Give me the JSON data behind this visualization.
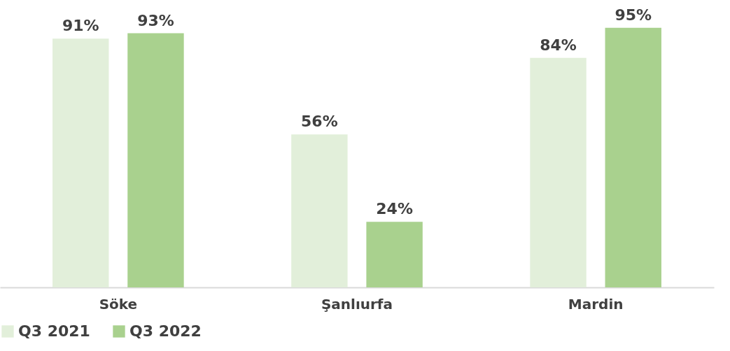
{
  "chart_data": {
    "type": "bar",
    "categories": [
      "Söke",
      "Şanlıurfa",
      "Mardin"
    ],
    "series": [
      {
        "name": "Q3 2021",
        "color": "#e2efda",
        "values": [
          91,
          56,
          84
        ],
        "value_labels": [
          "91%",
          "56%",
          "84%"
        ]
      },
      {
        "name": "Q3 2022",
        "color": "#a9d18e",
        "values": [
          93,
          24,
          95
        ],
        "value_labels": [
          "93%",
          "24%",
          "95%"
        ]
      }
    ],
    "legend": "bottom",
    "grid": false
  }
}
